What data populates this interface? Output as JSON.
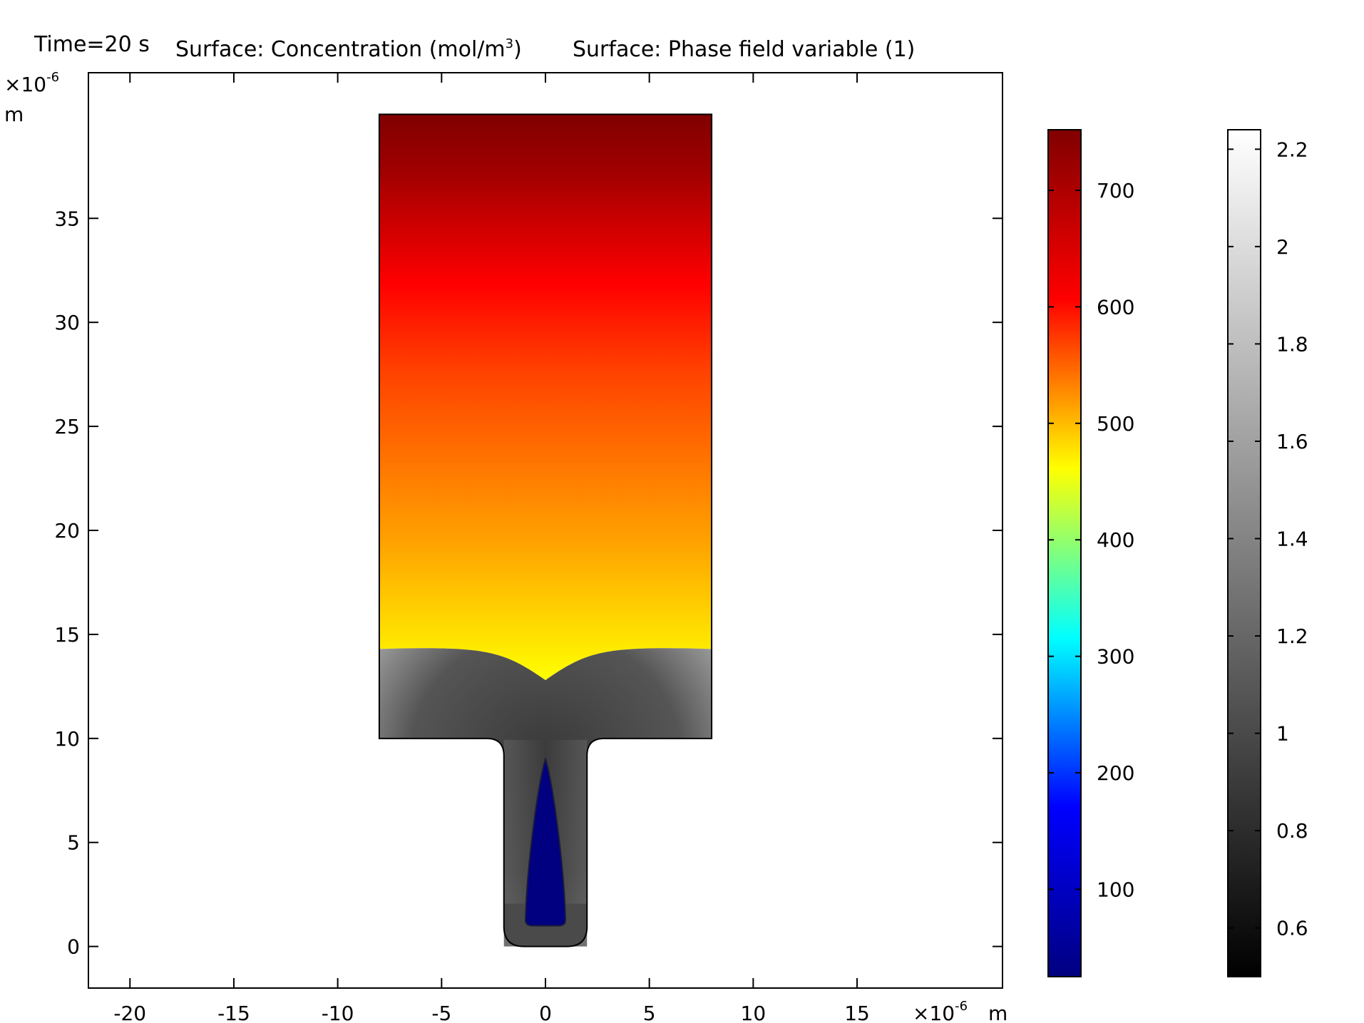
{
  "header": {
    "time": "Time=20 s",
    "surface1": "Surface: Concentration (mol/m",
    "surface1_sup": "3",
    "surface1_end": ")",
    "surface2": "Surface: Phase field variable (1)"
  },
  "chart_data": {
    "type": "heatmap",
    "x_axis": {
      "range": [
        -22,
        22
      ],
      "ticks": [
        "-20",
        "-15",
        "-10",
        "-5",
        "0",
        "5",
        "10",
        "15"
      ],
      "tick_values": [
        -20,
        -15,
        -10,
        -5,
        0,
        5,
        10,
        15
      ],
      "scale_prefix": "×10",
      "scale_exp": "-6",
      "unit": "m"
    },
    "y_axis": {
      "range": [
        -2,
        42
      ],
      "ticks": [
        "0",
        "5",
        "10",
        "15",
        "20",
        "25",
        "30",
        "35"
      ],
      "tick_values": [
        0,
        5,
        10,
        15,
        20,
        25,
        30,
        35
      ],
      "scale_prefix": "×10",
      "scale_exp": "-6",
      "unit": "m"
    },
    "geometry_um": {
      "wide_rect": {
        "x": [
          -8,
          8
        ],
        "y": [
          10,
          40
        ]
      },
      "narrow_channel": {
        "x": [
          -2,
          2
        ],
        "y": [
          0,
          10
        ]
      },
      "phase_front_edge_y": 14.3,
      "phase_front_center_y": 12.8,
      "blue_region_tip_y": 9.0,
      "blue_region_base_y": 1.0
    },
    "colorbar_concentration": {
      "label": "Concentration (mol/m3)",
      "range": [
        25,
        752
      ],
      "ticks": [
        "100",
        "200",
        "300",
        "400",
        "500",
        "600",
        "700"
      ],
      "tick_values": [
        100,
        200,
        300,
        400,
        500,
        600,
        700
      ],
      "colors": [
        "#000080",
        "#0000ff",
        "#00ffff",
        "#ffff00",
        "#ff0000",
        "#800000"
      ]
    },
    "colorbar_phase": {
      "label": "Phase field variable (1)",
      "range": [
        0.5,
        2.24
      ],
      "ticks": [
        "0.6",
        "0.8",
        "1",
        "1.2",
        "1.4",
        "1.6",
        "1.8",
        "2",
        "2.2"
      ],
      "tick_values": [
        0.6,
        0.8,
        1.0,
        1.2,
        1.4,
        1.6,
        1.8,
        2.0,
        2.2
      ],
      "colors": [
        "#000000",
        "#ffffff"
      ]
    }
  }
}
